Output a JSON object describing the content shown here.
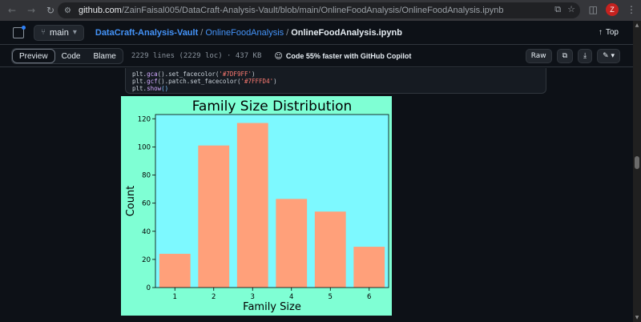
{
  "browser": {
    "url_host": "github.com",
    "url_path": "/ZainFaisal005/DataCraft-Analysis-Vault/blob/main/OnlineFoodAnalysis/OnlineFoodAnalysis.ipynb",
    "profile_initial": "Z",
    "icons": [
      "back-arrow-icon",
      "forward-arrow-icon",
      "reload-icon",
      "site-settings-icon",
      "install-icon",
      "star-icon",
      "extensions-icon",
      "menu-dots-icon"
    ]
  },
  "repo_header": {
    "branch": "main",
    "repo_name": "DataCraft-Analysis-Vault",
    "separator": "/",
    "directory": "OnlineFoodAnalysis",
    "file_name": "OnlineFoodAnalysis.ipynb",
    "top_label": "Top"
  },
  "file_toolbar": {
    "tabs": [
      "Preview",
      "Code",
      "Blame"
    ],
    "active_tab": "Preview",
    "file_info": "2229 lines (2229 loc) · 437 KB",
    "copilot_text": "Code 55% faster with GitHub Copilot",
    "raw_label": "Raw"
  },
  "code": {
    "line1_a": "plt.",
    "line1_fn": "gca",
    "line1_b": "().set_facecolor(",
    "line1_str": "'#7DF9FF'",
    "line1_c": ")",
    "line2_a": "plt.",
    "line2_fn": "gcf",
    "line2_b": "().patch.set_facecolor(",
    "line2_str": "'#7FFFD4'",
    "line2_c": ")",
    "line3_a": "plt.",
    "line3_fn": "show",
    "line3_b": "()"
  },
  "chart_data": {
    "type": "bar",
    "title": "Family Size Distribution",
    "xlabel": "Family Size",
    "ylabel": "Count",
    "categories": [
      "1",
      "2",
      "3",
      "4",
      "5",
      "6"
    ],
    "values": [
      24,
      101,
      117,
      63,
      54,
      29
    ],
    "ylim": [
      0,
      123
    ],
    "yticks": [
      0,
      20,
      40,
      60,
      80,
      100,
      120
    ],
    "bar_color": "#FFA07A",
    "axes_facecolor": "#7DF9FF",
    "figure_facecolor": "#7FFFD4",
    "grid": false
  }
}
